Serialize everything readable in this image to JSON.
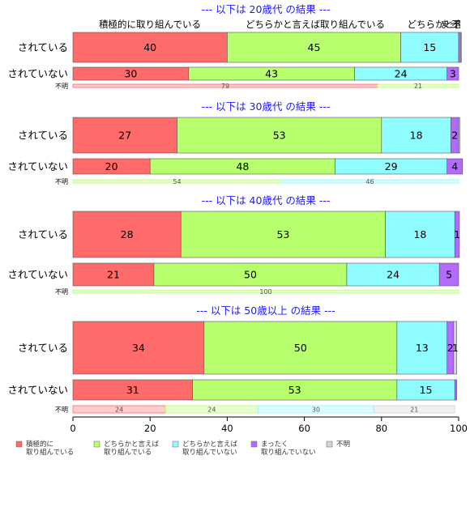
{
  "chart_data": {
    "type": "bar",
    "orientation": "horizontal",
    "stacked": "percent",
    "xlim": [
      0,
      100
    ],
    "x_ticks": [
      "0",
      "20",
      "40",
      "60",
      "80",
      "100"
    ],
    "top_header_labels": [
      "積極的に取り組んでいる",
      "どちらかと言えば取り組んでいる",
      "どちらかと言",
      "まった",
      "不明"
    ],
    "category_colors": [
      "#ff6b6b",
      "#b8ff6e",
      "#8ffcff",
      "#b36bff",
      "#d3d3d3"
    ],
    "legend": {
      "placement": "bottom",
      "items": [
        {
          "label": [
            "積極的に",
            "取り組んでいる"
          ],
          "color": "#ff6b6b"
        },
        {
          "label": [
            "どちらかと言えば",
            "取り組んでいる"
          ],
          "color": "#b8ff6e"
        },
        {
          "label": [
            "どちらかと言えば",
            "取り組んでいない"
          ],
          "color": "#8ffcff"
        },
        {
          "label": [
            "まったく",
            "取り組んでいない"
          ],
          "color": "#b36bff"
        },
        {
          "label": [
            "不明"
          ],
          "color": "#d3d3d3"
        }
      ]
    },
    "panels": [
      {
        "title": "--- 以下は 20歳代 の結果 ---",
        "rows": [
          {
            "label": "されている",
            "values": [
              40,
              45,
              15,
              0.5,
              0.2
            ],
            "labels": [
              "40",
              "45",
              "15",
              "",
              ""
            ]
          },
          {
            "label": "されていない",
            "values": [
              30,
              43,
              24,
              3,
              0
            ],
            "labels": [
              "30",
              "43",
              "24",
              "3",
              ""
            ]
          },
          {
            "label": "不明",
            "values": [
              79,
              21,
              0,
              0,
              0
            ],
            "labels": [
              "79",
              "21",
              "",
              "",
              ""
            ]
          }
        ]
      },
      {
        "title": "--- 以下は 30歳代 の結果 ---",
        "rows": [
          {
            "label": "されている",
            "values": [
              27,
              53,
              18,
              2,
              0.3
            ],
            "labels": [
              "27",
              "53",
              "18",
              "2",
              ""
            ]
          },
          {
            "label": "されていない",
            "values": [
              20,
              48,
              29,
              4,
              0
            ],
            "labels": [
              "20",
              "48",
              "29",
              "4",
              ""
            ]
          },
          {
            "label": "不明",
            "values": [
              0,
              54,
              46,
              0,
              0
            ],
            "labels": [
              "",
              "54",
              "46",
              "",
              ""
            ]
          }
        ]
      },
      {
        "title": "--- 以下は 40歳代 の結果 ---",
        "rows": [
          {
            "label": "されている",
            "values": [
              28,
              53,
              18,
              1.2,
              0
            ],
            "labels": [
              "28",
              "53",
              "18",
              "1",
              ""
            ]
          },
          {
            "label": "されていない",
            "values": [
              21,
              50,
              24,
              5,
              0
            ],
            "labels": [
              "21",
              "50",
              "24",
              "5",
              ""
            ]
          },
          {
            "label": "不明",
            "values": [
              0,
              100,
              0,
              0,
              0
            ],
            "labels": [
              "",
              "100",
              "",
              "",
              ""
            ]
          }
        ]
      },
      {
        "title": "--- 以下は 50歳以上 の結果 ---",
        "rows": [
          {
            "label": "されている",
            "values": [
              34,
              50,
              13,
              1.7,
              0.8
            ],
            "labels": [
              "34",
              "50",
              "13",
              "2",
              "1"
            ]
          },
          {
            "label": "されていない",
            "values": [
              31,
              53,
              15,
              0.5,
              0
            ],
            "labels": [
              "31",
              "53",
              "15",
              "",
              ""
            ]
          },
          {
            "label": "不明",
            "values": [
              24,
              24,
              30,
              0,
              21
            ],
            "labels": [
              "24",
              "24",
              "30",
              "",
              "21"
            ]
          }
        ]
      }
    ]
  }
}
